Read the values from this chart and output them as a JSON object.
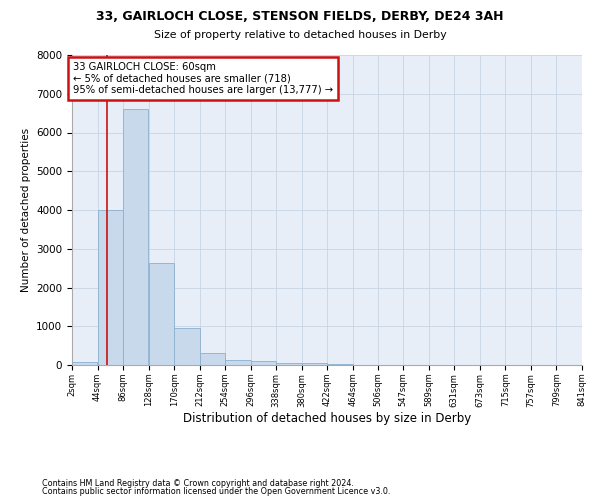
{
  "title1": "33, GAIRLOCH CLOSE, STENSON FIELDS, DERBY, DE24 3AH",
  "title2": "Size of property relative to detached houses in Derby",
  "xlabel": "Distribution of detached houses by size in Derby",
  "ylabel": "Number of detached properties",
  "footer1": "Contains HM Land Registry data © Crown copyright and database right 2024.",
  "footer2": "Contains public sector information licensed under the Open Government Licence v3.0.",
  "bar_color": "#c9d9ec",
  "bar_edge_color": "#8ab0cf",
  "grid_color": "#c8d4e4",
  "red_line_color": "#cc1111",
  "annotation_box_color": "#cc1111",
  "bin_edges": [
    2,
    44,
    86,
    128,
    170,
    212,
    254,
    296,
    338,
    380,
    422,
    464,
    506,
    547,
    589,
    631,
    673,
    715,
    757,
    799,
    841
  ],
  "bin_labels": [
    "2sqm",
    "44sqm",
    "86sqm",
    "128sqm",
    "170sqm",
    "212sqm",
    "254sqm",
    "296sqm",
    "338sqm",
    "380sqm",
    "422sqm",
    "464sqm",
    "506sqm",
    "547sqm",
    "589sqm",
    "631sqm",
    "673sqm",
    "715sqm",
    "757sqm",
    "799sqm",
    "841sqm"
  ],
  "bar_heights": [
    80,
    4000,
    6600,
    2620,
    950,
    320,
    140,
    110,
    55,
    40,
    30,
    0,
    0,
    0,
    0,
    0,
    0,
    0,
    0,
    0
  ],
  "property_line_x": 60,
  "ylim": [
    0,
    8000
  ],
  "yticks": [
    0,
    1000,
    2000,
    3000,
    4000,
    5000,
    6000,
    7000,
    8000
  ],
  "annotation_text": "33 GAIRLOCH CLOSE: 60sqm\n← 5% of detached houses are smaller (718)\n95% of semi-detached houses are larger (13,777) →",
  "background_color": "#e8eef8"
}
